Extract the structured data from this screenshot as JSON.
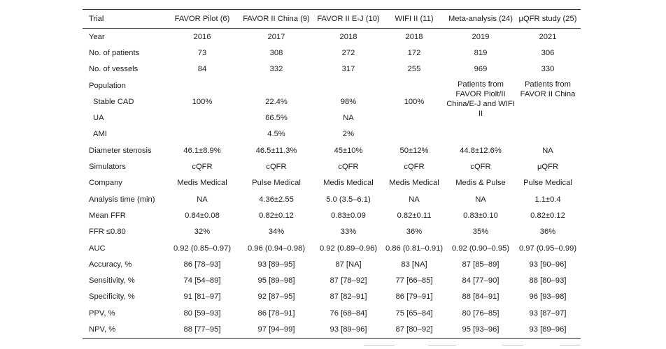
{
  "table": {
    "headers": [
      "Trial",
      "FAVOR Pilot (6)",
      "FAVOR II China (9)",
      "FAVOR II E-J (10)",
      "WIFI II (11)",
      "Meta-analysis (24)",
      "μQFR study (25)"
    ],
    "year": {
      "label": "Year",
      "values": [
        "2016",
        "2017",
        "2018",
        "2018",
        "2019",
        "2021"
      ]
    },
    "patients": {
      "label": "No. of patients",
      "values": [
        "73",
        "308",
        "272",
        "172",
        "819",
        "306"
      ]
    },
    "vessels": {
      "label": "No. of vessels",
      "values": [
        "84",
        "332",
        "317",
        "255",
        "969",
        "330"
      ]
    },
    "population": {
      "label": "Population",
      "stable_cad": {
        "label": "Stable CAD",
        "values": [
          "100%",
          "22.4%",
          "98%",
          "100%"
        ]
      },
      "ua": {
        "label": "UA",
        "values": [
          "66.5%",
          "NA"
        ]
      },
      "ami": {
        "label": "AMI",
        "values": [
          "4.5%",
          "2%"
        ]
      },
      "meta_note": "Patients from FAVOR Piolt/II China/E-J and WIFI II",
      "uqfr_note": "Patients from FAVOR II China"
    },
    "diameter": {
      "label": "Diameter stenosis",
      "values": [
        "46.1±8.9%",
        "46.5±11.3%",
        "45±10%",
        "50±12%",
        "44.8±12.6%",
        "NA"
      ]
    },
    "simulators": {
      "label": "Simulators",
      "values": [
        "cQFR",
        "cQFR",
        "cQFR",
        "cQFR",
        "cQFR",
        "μQFR"
      ]
    },
    "company": {
      "label": "Company",
      "values": [
        "Medis Medical",
        "Pulse Medical",
        "Medis Medical",
        "Medis Medical",
        "Medis & Pulse",
        "Pulse Medical"
      ]
    },
    "analysis_time": {
      "label": "Analysis time (min)",
      "values": [
        "NA",
        "4.36±2.55",
        "5.0 (3.5–6.1)",
        "NA",
        "NA",
        "1.1±0.4"
      ]
    },
    "mean_ffr": {
      "label": "Mean FFR",
      "values": [
        "0.84±0.08",
        "0.82±0.12",
        "0.83±0.09",
        "0.82±0.11",
        "0.83±0.10",
        "0.82±0.12"
      ]
    },
    "ffr_080": {
      "label": "FFR ≤0.80",
      "values": [
        "32%",
        "34%",
        "33%",
        "36%",
        "35%",
        "36%"
      ]
    },
    "auc": {
      "label": "AUC",
      "values": [
        "0.92 (0.85–0.97)",
        "0.96 (0.94–0.98)",
        "0.92 (0.89–0.96)",
        "0.86 (0.81–0.91)",
        "0.92 (0.90–0.95)",
        "0.97 (0.95–0.99)"
      ]
    },
    "accuracy": {
      "label": "Accuracy, %",
      "values": [
        "86 [78–93]",
        "93 [89–95]",
        "87 [NA]",
        "83 [NA]",
        "87 [85–89]",
        "93 [90–96]"
      ]
    },
    "sensitivity": {
      "label": "Sensitivity, %",
      "values": [
        "74 [54–89]",
        "95 [89–98]",
        "87 [78–92]",
        "77 [66–85]",
        "84 [77–90]",
        "88 [80–93]"
      ]
    },
    "specificity": {
      "label": "Specificity, %",
      "values": [
        "91 [81–97]",
        "92 [87–95]",
        "87 [82–91]",
        "86 [79–91]",
        "88 [84–91]",
        "96 [93–98]"
      ]
    },
    "ppv": {
      "label": "PPV, %",
      "values": [
        "80 [59–93]",
        "86 [78–91]",
        "76 [68–84]",
        "75 [65–84]",
        "80 [76–85]",
        "93 [87–97]"
      ]
    },
    "npv": {
      "label": "NPV, %",
      "values": [
        "88 [77–95]",
        "97 [94–99]",
        "93 [89–96]",
        "87 [80–92]",
        "95 [93–96]",
        "93 [89–96]"
      ]
    }
  }
}
